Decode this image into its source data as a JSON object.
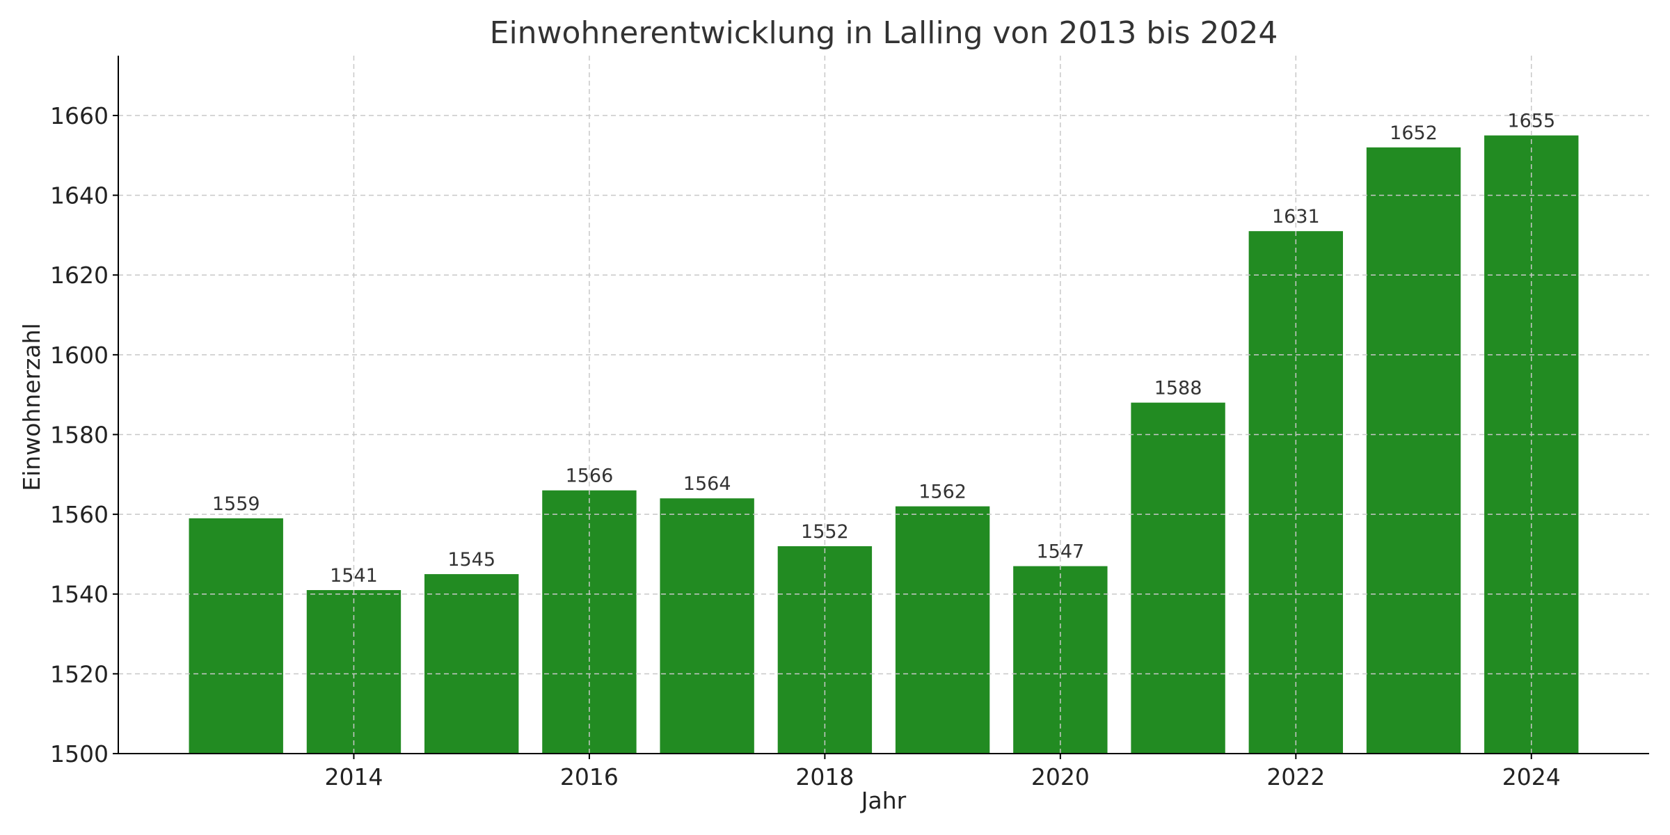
{
  "chart_data": {
    "type": "bar",
    "title": "Einwohnerentwicklung in Lalling von 2013 bis 2024",
    "xlabel": "Jahr",
    "ylabel": "Einwohnerzahl",
    "categories": [
      "2013",
      "2014",
      "2015",
      "2016",
      "2017",
      "2018",
      "2019",
      "2020",
      "2021",
      "2022",
      "2023",
      "2024"
    ],
    "values": [
      1559,
      1541,
      1545,
      1566,
      1564,
      1552,
      1562,
      1547,
      1588,
      1631,
      1652,
      1655
    ],
    "x_ticks": [
      "2014",
      "2016",
      "2018",
      "2020",
      "2022",
      "2024"
    ],
    "y_ticks": [
      1500,
      1520,
      1540,
      1560,
      1580,
      1600,
      1620,
      1640,
      1660
    ],
    "ylim": [
      1500,
      1675
    ],
    "grid": true,
    "bar_color": "#228B22",
    "data_labels": true
  }
}
